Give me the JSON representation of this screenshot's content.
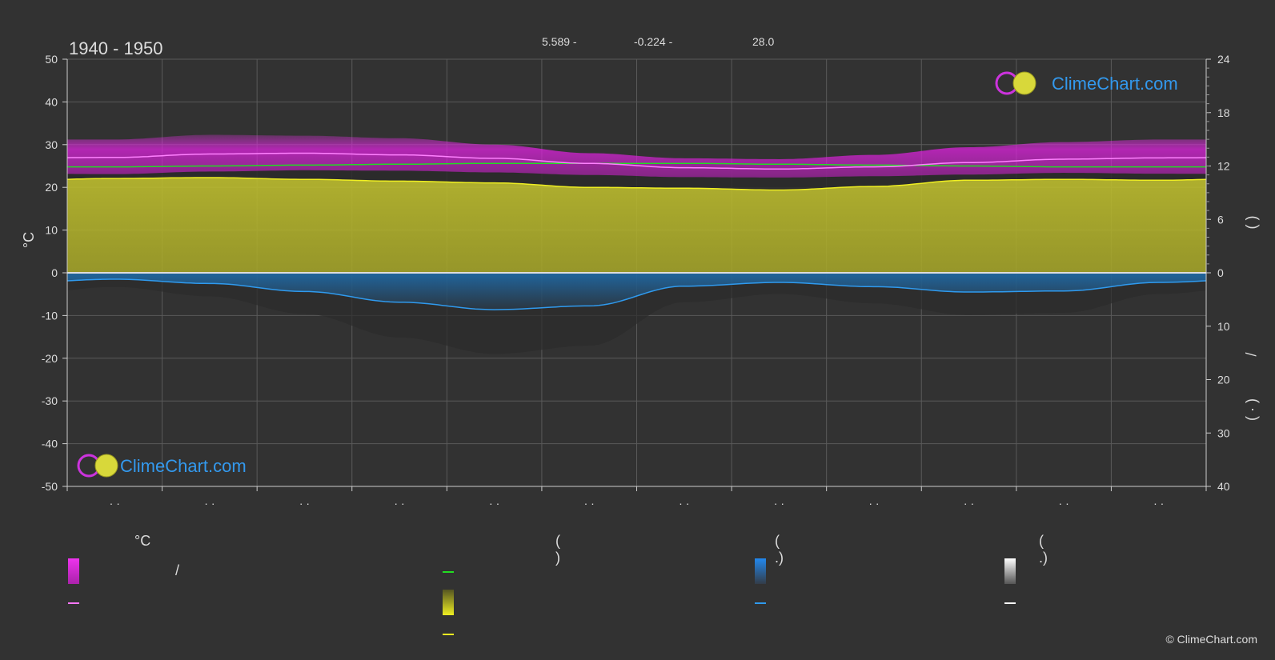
{
  "header": {
    "period": "1940 - 1950",
    "coord_lat": "5.589 -",
    "coord_lon": "-0.224 -",
    "elevation": "28.0"
  },
  "watermark": {
    "brand": "ClimeChart.com"
  },
  "copyright": "© ClimeChart.com",
  "left_axis": {
    "label": "°C"
  },
  "right_axis": {
    "upper_label": "(   )",
    "lower_label": "/",
    "lower_label2": "( · )"
  },
  "month_labels": [
    "· ·",
    "· ·",
    "· ·",
    "· ·",
    "· ·",
    "· ·",
    "· ·",
    "· ·",
    "· ·",
    "· ·",
    "· ·",
    "· ·"
  ],
  "legend": {
    "col1_header": "°C",
    "col2_header": "(        )",
    "col3_header": "(   .)",
    "col4_header": "(   .)",
    "col1_item1": "/"
  },
  "colors": {
    "background": "#323232",
    "temp_range": "#e020e0",
    "mean_temp": "#ff80ff",
    "daylight": "#22dd22",
    "sunshine": "#cccc33",
    "sunshine_line": "#eeee22",
    "rain": "#2288dd",
    "rain_line": "#2f9aee",
    "snow": "#ffffff"
  },
  "chart_data": {
    "type": "area",
    "x_unit": "month",
    "x": [
      0.5,
      1.5,
      2.5,
      3.5,
      4.5,
      5.5,
      6.5,
      7.5,
      8.5,
      9.5,
      10.5,
      11.5
    ],
    "left_ylim": [
      -50,
      50
    ],
    "left_yticks": [
      50,
      40,
      30,
      20,
      10,
      0,
      -10,
      -20,
      -30,
      -40,
      -50
    ],
    "right_upper_ylim": [
      0,
      24
    ],
    "right_upper_ticks": [
      24,
      18,
      12,
      6,
      0
    ],
    "right_lower_ylim": [
      0,
      40
    ],
    "right_lower_ticks": [
      0,
      10,
      20,
      30,
      40
    ],
    "grid": true,
    "series": [
      {
        "name": "mean_temp",
        "axis": "left_c",
        "values": [
          27.0,
          27.8,
          28.0,
          27.6,
          26.8,
          25.6,
          24.6,
          24.3,
          24.8,
          25.8,
          26.6,
          26.9
        ]
      },
      {
        "name": "temp_max",
        "axis": "left_c",
        "values": [
          31.2,
          32.3,
          32.1,
          31.5,
          30.0,
          28.0,
          26.8,
          26.6,
          27.6,
          29.4,
          30.6,
          31.2
        ]
      },
      {
        "name": "temp_min",
        "axis": "left_c",
        "values": [
          23.1,
          23.7,
          24.0,
          23.9,
          23.5,
          22.9,
          22.4,
          22.3,
          22.6,
          23.0,
          23.4,
          23.2
        ]
      },
      {
        "name": "daylight",
        "axis": "right_hours",
        "values": [
          11.9,
          12.0,
          12.1,
          12.2,
          12.3,
          12.3,
          12.3,
          12.2,
          12.1,
          12.0,
          11.9,
          11.9
        ]
      },
      {
        "name": "sunshine",
        "axis": "right_hours",
        "values": [
          10.6,
          10.7,
          10.5,
          10.3,
          10.1,
          9.6,
          9.5,
          9.3,
          9.7,
          10.4,
          10.5,
          10.4
        ]
      },
      {
        "name": "rain",
        "axis": "right_mm",
        "values": [
          1.2,
          2.0,
          3.5,
          5.5,
          6.9,
          6.2,
          2.5,
          1.8,
          2.6,
          3.6,
          3.4,
          1.8
        ]
      }
    ]
  }
}
